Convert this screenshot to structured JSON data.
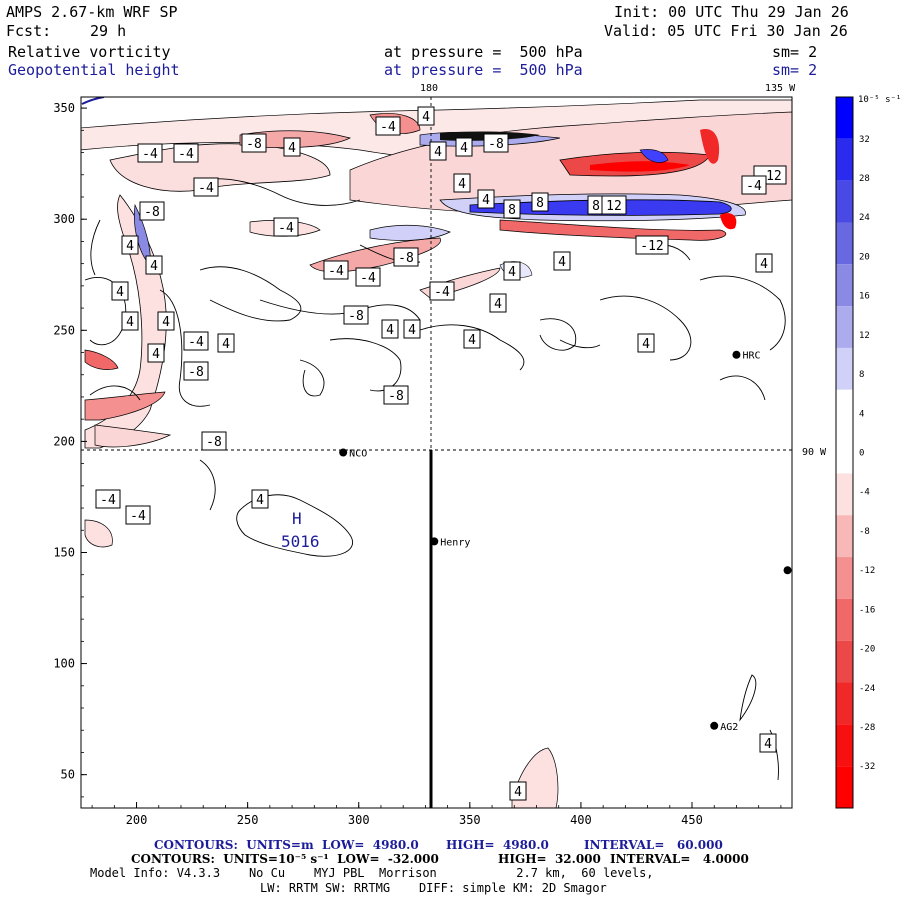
{
  "header": {
    "model": "AMPS 2.67-km WRF SP",
    "init": "Init: 00 UTC Thu 29 Jan 26",
    "fcst_label": "Fcst:",
    "fcst_value": "29 h",
    "valid": "Valid: 05 UTC Fri 30 Jan 26",
    "field1": "Relative vorticity",
    "field1_level": "at pressure =  500 hPa",
    "field1_sm": "sm= 2",
    "field2": "Geopotential height",
    "field2_level": "at pressure =  500 hPa",
    "field2_sm": "sm= 2"
  },
  "map_labels": {
    "lon_180": "180",
    "lon_135w": "135 W",
    "lat_90w": "90 W",
    "high_letter": "H",
    "high_value": "5016"
  },
  "stations": [
    {
      "name": "NCO",
      "x": 293,
      "y": 195
    },
    {
      "name": "Henry",
      "x": 334,
      "y": 155
    },
    {
      "name": "HRC",
      "x": 470,
      "y": 239
    },
    {
      "name": "AG2",
      "x": 460,
      "y": 72
    },
    {
      "name": "",
      "x": 493,
      "y": 142
    }
  ],
  "contour_labels": [
    "-4",
    "-4",
    "-8",
    "-4",
    "-8",
    "-4",
    "-4",
    "-4",
    "-8",
    "-4",
    "-8",
    "-4",
    "-8",
    "-12",
    "8",
    "8",
    "8",
    "12",
    "-12",
    "4",
    "4",
    "4",
    "4",
    "4",
    "4",
    "4",
    "4",
    "4",
    "4",
    "4",
    "4",
    "4",
    "4",
    "4",
    "4",
    "4",
    "-4",
    "4",
    "4",
    "4",
    "-4",
    "4",
    "-8",
    "-8",
    "-8",
    "-4",
    "-4",
    "4",
    "4",
    "4"
  ],
  "colorbar": {
    "unit": "10⁻⁵ s⁻¹",
    "ticks": [
      "32",
      "28",
      "24",
      "20",
      "16",
      "12",
      "8",
      "4",
      "0",
      "-4",
      "-8",
      "-12",
      "-16",
      "-20",
      "-24",
      "-28",
      "-32"
    ],
    "colors": [
      "#0000ff",
      "#2b2bf0",
      "#4949e6",
      "#6868e0",
      "#8a8ae4",
      "#ababee",
      "#d0d0f8",
      "#ffffff",
      "#ffffff",
      "#fde0e0",
      "#f8b8b8",
      "#f49090",
      "#f06868",
      "#ec4848",
      "#f02828",
      "#f81010",
      "#ff0000"
    ]
  },
  "footer": {
    "line1_a": "CONTOURS:  UNITS=m  LOW=  4980.0",
    "line1_b": "HIGH=  4980.0",
    "line1_c": "INTERVAL=   60.000",
    "line2_a": "CONTOURS:  UNITS=10⁻⁵ s⁻¹  LOW=  -32.000",
    "line2_b": "HIGH=  32.000",
    "line2_c": "INTERVAL=   4.0000",
    "line3": "Model Info: V4.3.3    No Cu    MYJ PBL  Morrison           2.7 km,  60 levels,",
    "line4": "LW: RRTM SW: RRTMG    DIFF: simple KM: 2D Smagor"
  },
  "chart_data": {
    "type": "heatmap",
    "title": "Relative vorticity / Geopotential height at 500 hPa",
    "x_ticks": [
      "200",
      "250",
      "300",
      "350",
      "400",
      "450"
    ],
    "y_ticks": [
      "350",
      "300",
      "250",
      "200",
      "150",
      "100",
      "50"
    ],
    "xlim": [
      175,
      495
    ],
    "ylim": [
      35,
      355
    ],
    "vorticity_range": [
      -32,
      32
    ],
    "vorticity_interval": 4,
    "height_contour_interval_m": 60
  }
}
